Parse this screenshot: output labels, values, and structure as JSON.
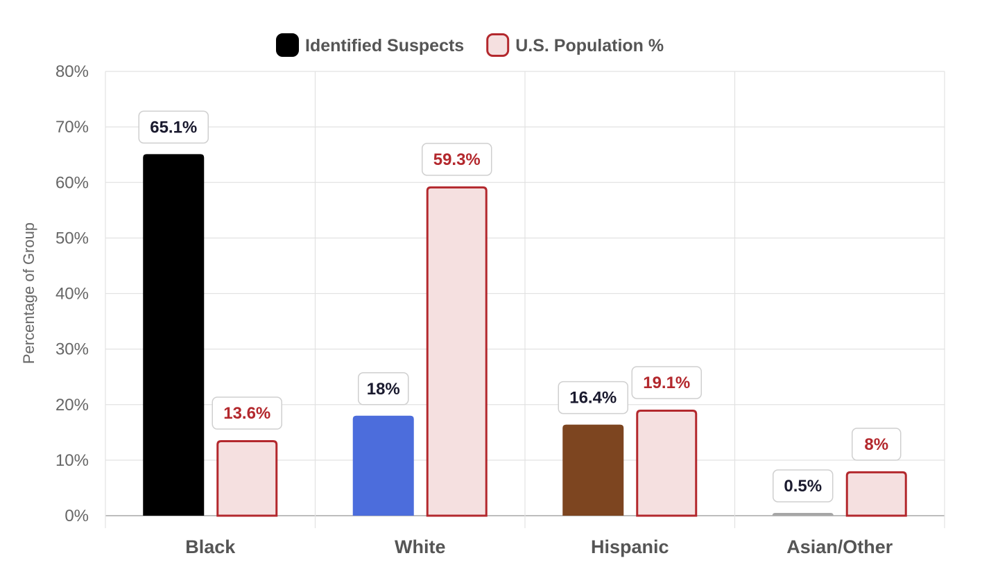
{
  "chart_data": {
    "type": "bar",
    "title": "",
    "xlabel": "",
    "ylabel": "Percentage of Group",
    "categories": [
      "Black",
      "White",
      "Hispanic",
      "Asian/Other"
    ],
    "ylim": [
      0,
      80
    ],
    "yticks": [
      0,
      10,
      20,
      30,
      40,
      50,
      60,
      70,
      80
    ],
    "ytick_labels": [
      "0%",
      "10%",
      "20%",
      "30%",
      "40%",
      "50%",
      "60%",
      "70%",
      "80%"
    ],
    "grid": true,
    "legend_position": "top-center",
    "series": [
      {
        "name": "Identified Suspects",
        "values": [
          65.1,
          18,
          16.4,
          0.5
        ],
        "labels": [
          "65.1%",
          "18%",
          "16.4%",
          "0.5%"
        ],
        "colors": [
          "#000000",
          "#4c6ddc",
          "#7d4520",
          "#a6a6a6"
        ],
        "label_color": "#1a1a2e",
        "legend_color": "#000000"
      },
      {
        "name": "U.S. Population %",
        "values": [
          13.6,
          59.3,
          19.1,
          8
        ],
        "labels": [
          "13.6%",
          "59.3%",
          "19.1%",
          "8%"
        ],
        "fill": "#f5e0e0",
        "stroke": "#b3282d",
        "label_color": "#b3282d"
      }
    ]
  }
}
